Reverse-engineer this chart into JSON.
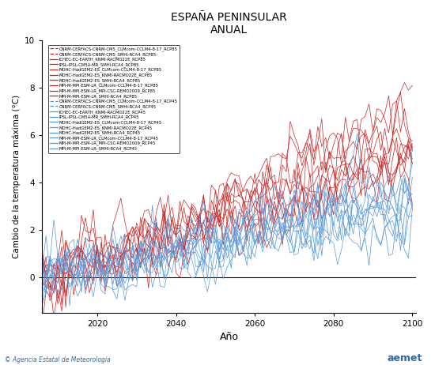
{
  "title": "ESPAÑA PENINSULAR",
  "subtitle": "ANUAL",
  "xlabel": "Año",
  "ylabel": "Cambio de la temperatura máxima (°C)",
  "xlim": [
    2006,
    2101
  ],
  "ylim": [
    -1.5,
    10
  ],
  "yticks": [
    0,
    2,
    4,
    6,
    8,
    10
  ],
  "xticks": [
    2020,
    2040,
    2060,
    2080,
    2100
  ],
  "start_year": 2006,
  "end_year": 2100,
  "rcp85_color": "#cc2222",
  "rcp45_color": "#5599dd",
  "legend_rcp85_entries": [
    "CNRM-CERFACS-CNRM-CM5_CLMcom-CCLM4-8-17_RCP85",
    "CNRM-CERFACS-CNRM-CM5_SMHI-RCA4_RCP85",
    "ICHEC-EC-EARTH_KNMI-RACMO22E_RCP85",
    "IPSL-IPSL-CM5A-MR_SMHI-RCA4_RCP85",
    "MOHC-HadGEM2-ES_CLMcom-CCLM4-8-17_RCP85",
    "MOHC-HadGEM2-ES_KNMI-RACMO22E_RCP85",
    "MOHC-HadGEM2-ES_SMHI-RCA4_RCP85",
    "MPI-M-MPI-ESM-LR_CLMcom-CCLM4-8-17_RCP85",
    "MPI-M-MPI-ESM-LR_MPI-CSC-REMO2009_RCP85",
    "MPI-M-MPI-ESM-LR_SMHI-RCA4_RCP85"
  ],
  "legend_rcp45_entries": [
    "CNRM-CERFACS-CNRM-CM5_CLMcom-CCLM4-8-17_RCP45",
    "CNRM-CERFACS-CNRM-CM5_SMHI-RCA4_RCP45",
    "ICHEC-EC-EARTH_KNMI-RACMO22E_RCP45",
    "IPSL-IPSL-CM5A-MR_SMHI-RCA4_RCP45",
    "MOHC-HadGEM2-ES_CLMcom-CCLM4-8-17_RCP45",
    "MOHC-HadGEM2-ES_KNMI-RACMO22E_RCP45",
    "MOHC-HadGEM2-ES_SMHI-RCA4_RCP45",
    "MPI-M-MPI-ESM-LR_CLMcom-CCLM4-8-17_RCP45",
    "MPI-M-MPI-ESM-LR_MPI-CSC-REMO2009_RCP45",
    "MPI-M-MPI-ESM-LR_SMHI-RCA4_RCP45"
  ],
  "rcp85_final": [
    5.5,
    5.0,
    4.8,
    5.2,
    7.2,
    6.8,
    7.0,
    5.0,
    5.5,
    5.3
  ],
  "rcp45_final": [
    3.0,
    2.8,
    2.5,
    3.2,
    4.0,
    3.8,
    3.9,
    2.8,
    3.1,
    2.9
  ],
  "noise_scale": 0.65,
  "background_color": "#ffffff",
  "watermark_color": "#3366aa",
  "watermark_left": "© Agencia Estatal de Meteorología",
  "watermark_right": "aemet"
}
